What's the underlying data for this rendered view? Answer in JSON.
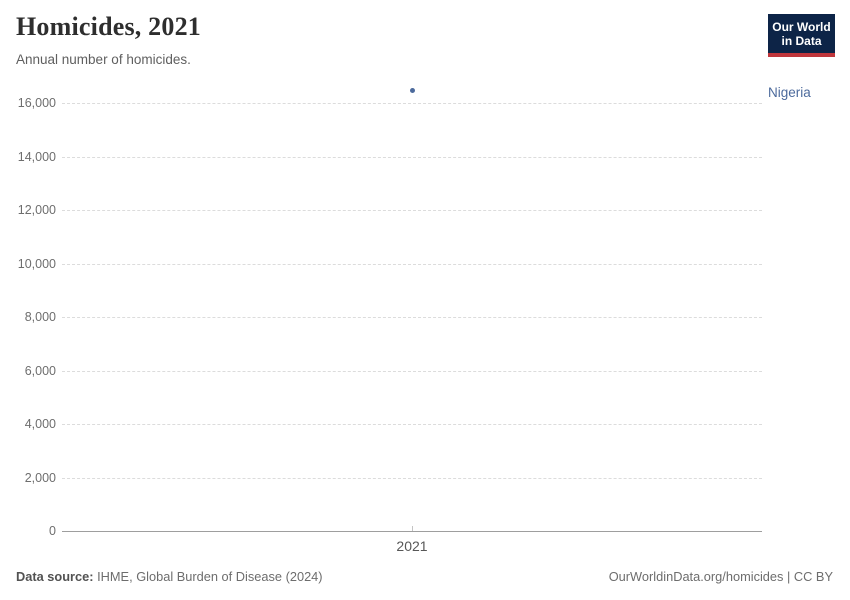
{
  "header": {
    "title": "Homicides, 2021",
    "subtitle": "Annual number of homicides.",
    "logo": {
      "line1": "Our World",
      "line2": "in Data",
      "bg_color": "#0d2447",
      "bar_color": "#c0363c"
    }
  },
  "chart_data": {
    "type": "scatter",
    "title": "Homicides, 2021",
    "subtitle": "Annual number of homicides.",
    "xlabel": "",
    "ylabel": "",
    "x_tick_labels": [
      "2021"
    ],
    "y_ticks": [
      0,
      2000,
      4000,
      6000,
      8000,
      10000,
      12000,
      14000,
      16000
    ],
    "ylim": [
      0,
      16800
    ],
    "grid": "horizontal-dashed",
    "series": [
      {
        "name": "Nigeria",
        "color": "#4c6a9c",
        "points": [
          {
            "x": 2021,
            "y": 16450
          }
        ]
      }
    ],
    "legend_position": "right-of-point"
  },
  "footer": {
    "source_label": "Data source:",
    "source_value": " IHME, Global Burden of Disease (2024)",
    "right_text": "OurWorldinData.org/homicides | CC BY"
  }
}
